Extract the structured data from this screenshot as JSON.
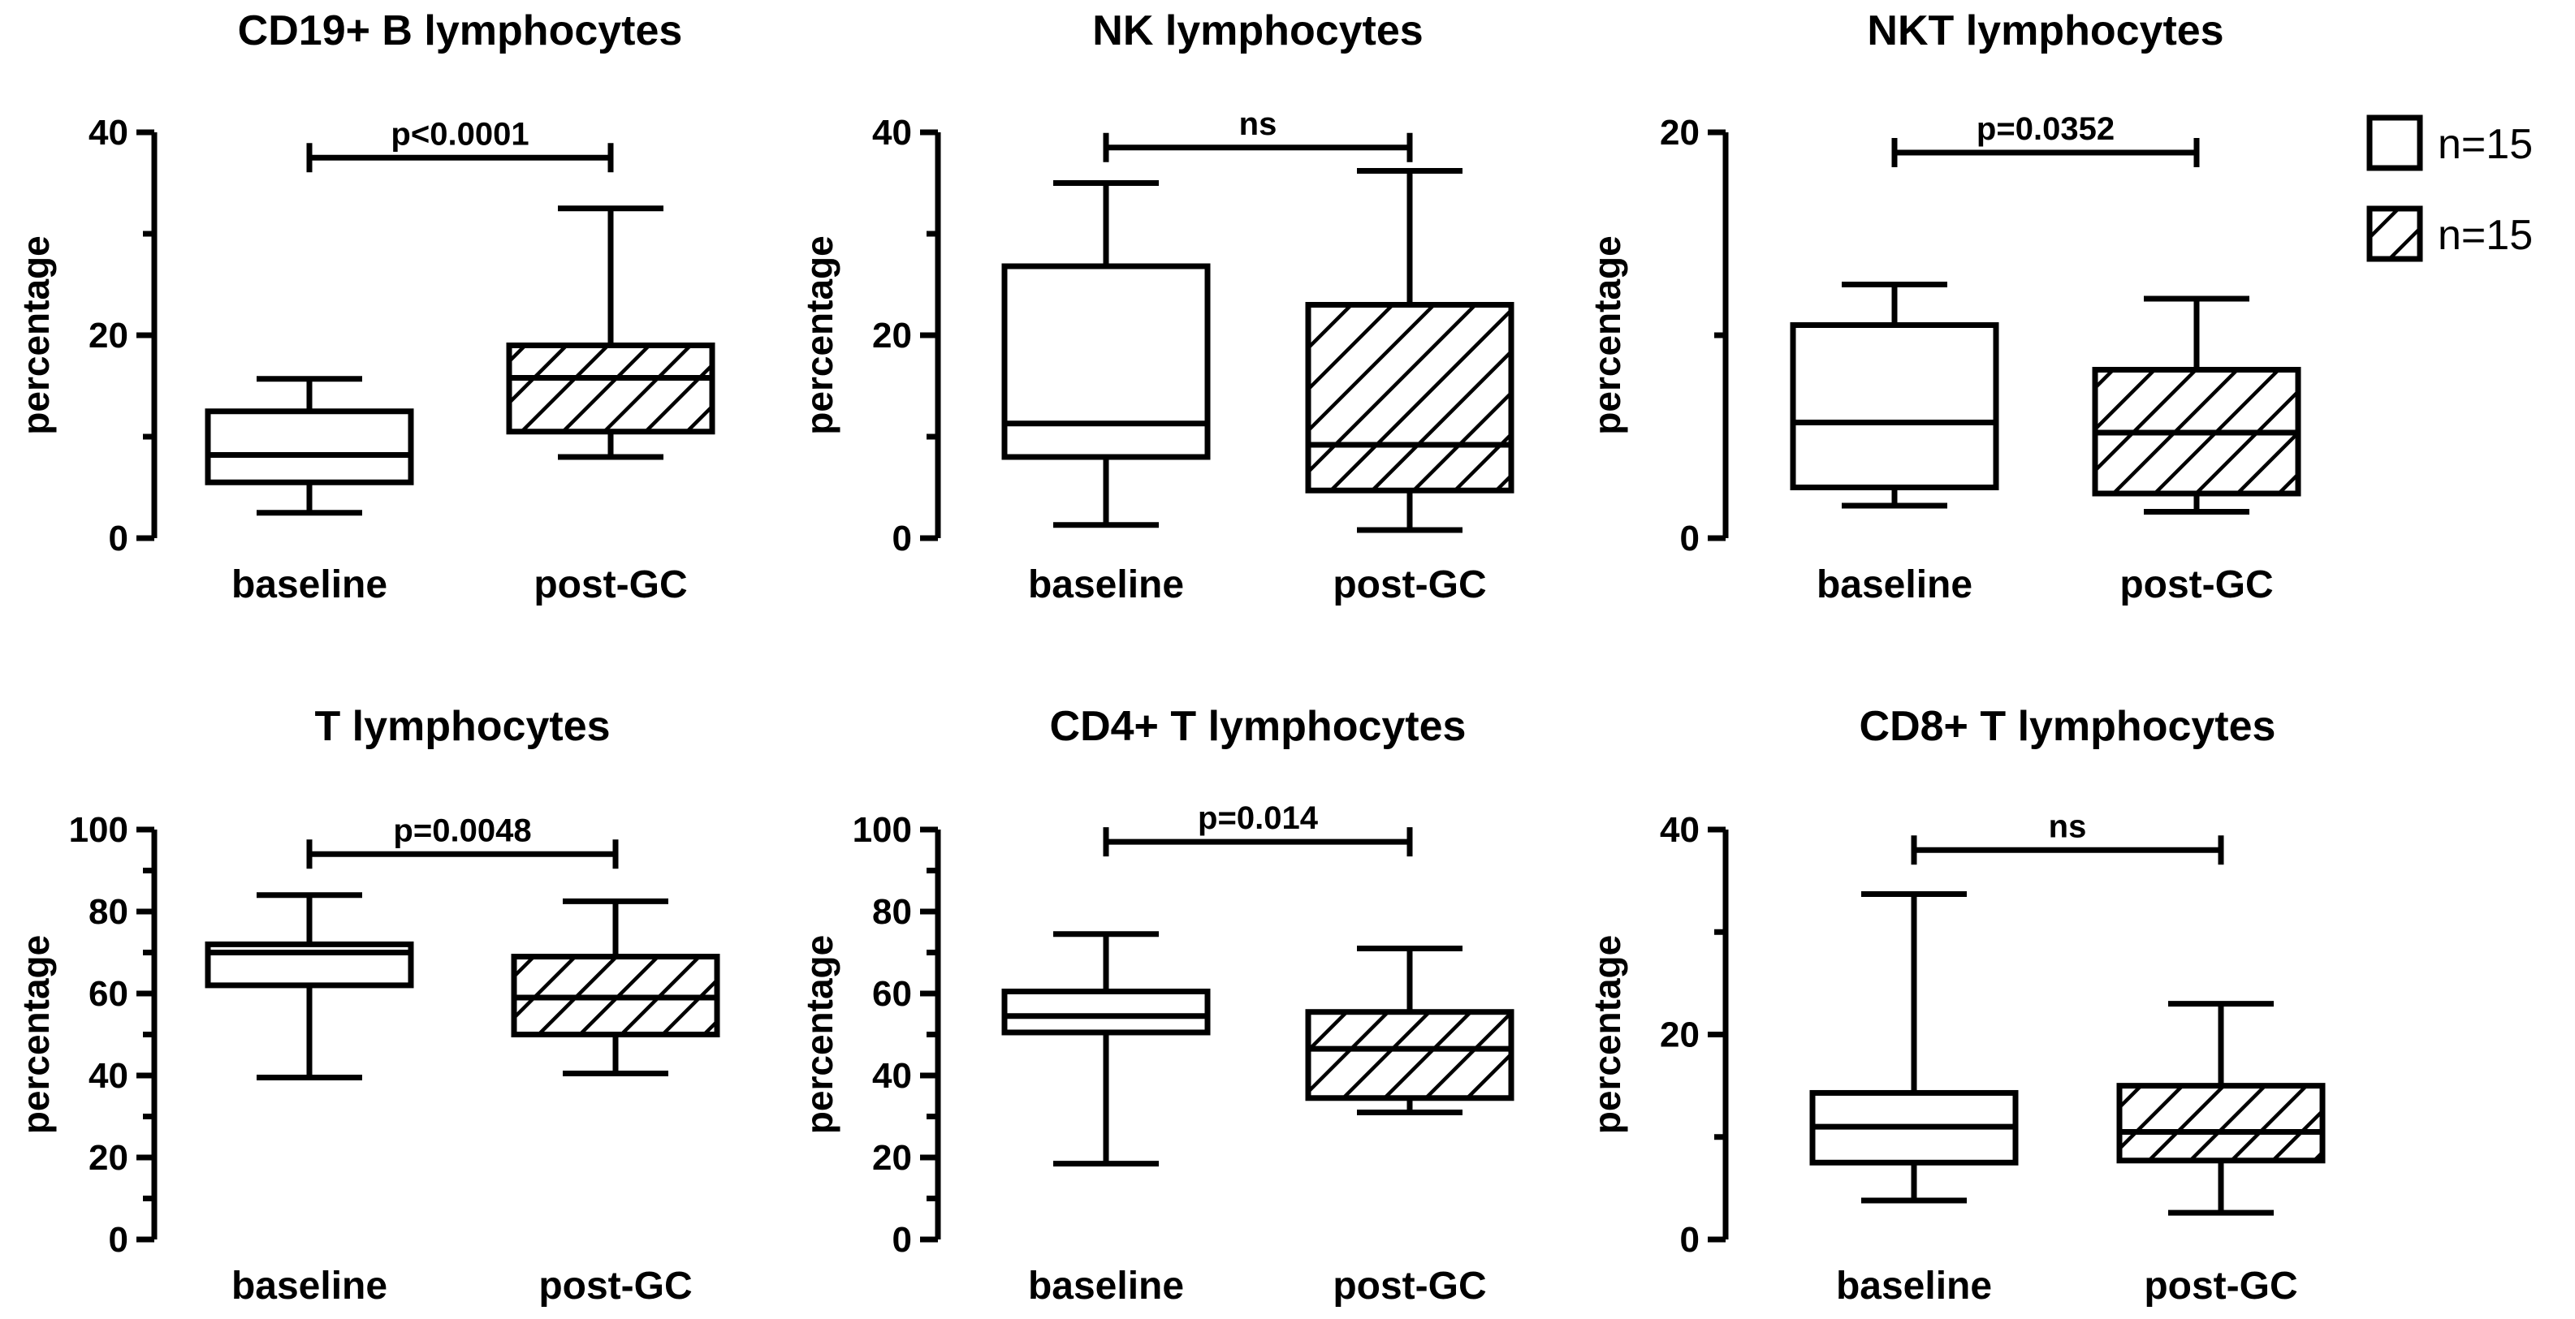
{
  "chart_data": [
    {
      "type": "boxplot",
      "title": "CD19+ B lymphocytes",
      "ylabel": "percentage",
      "ylim": [
        0,
        40
      ],
      "yticks": [
        "0",
        "20",
        "40"
      ],
      "categories": [
        "baseline",
        "post-GC"
      ],
      "boxes": [
        {
          "min": 2.5,
          "q1": 5.5,
          "median": 8.2,
          "q3": 12.5,
          "max": 15.7,
          "hatched": false
        },
        {
          "min": 8.0,
          "q1": 10.5,
          "median": 15.8,
          "q3": 19.0,
          "max": 32.5,
          "hatched": true
        }
      ],
      "annotation": {
        "text": "p<0.0001",
        "y": 37.5
      }
    },
    {
      "type": "boxplot",
      "title": "NK lymphocytes",
      "ylabel": "percentage",
      "ylim": [
        0,
        40
      ],
      "yticks": [
        "0",
        "20",
        "40"
      ],
      "categories": [
        "baseline",
        "post-GC"
      ],
      "boxes": [
        {
          "min": 1.3,
          "q1": 8.0,
          "median": 11.3,
          "q3": 26.8,
          "max": 35.0,
          "hatched": false
        },
        {
          "min": 0.8,
          "q1": 4.7,
          "median": 9.2,
          "q3": 23.0,
          "max": 36.2,
          "hatched": true
        }
      ],
      "annotation": {
        "text": "ns",
        "y": 38.5
      }
    },
    {
      "type": "boxplot",
      "title": "NKT lymphocytes",
      "ylabel": "percentage",
      "ylim": [
        0,
        20
      ],
      "yticks": [
        "0",
        "20"
      ],
      "categories": [
        "baseline",
        "post-GC"
      ],
      "boxes": [
        {
          "min": 1.6,
          "q1": 2.5,
          "median": 5.7,
          "q3": 10.5,
          "max": 12.5,
          "hatched": false
        },
        {
          "min": 1.3,
          "q1": 2.2,
          "median": 5.2,
          "q3": 8.3,
          "max": 11.8,
          "hatched": true
        }
      ],
      "annotation": {
        "text": "p=0.0352",
        "y": 19.0
      }
    },
    {
      "type": "boxplot",
      "title": "T lymphocytes",
      "ylabel": "percentage",
      "ylim": [
        0,
        100
      ],
      "yticks": [
        "0",
        "20",
        "40",
        "60",
        "80",
        "100"
      ],
      "categories": [
        "baseline",
        "post-GC"
      ],
      "boxes": [
        {
          "min": 39.5,
          "q1": 62.0,
          "median": 70.0,
          "q3": 72.0,
          "max": 84.0,
          "hatched": false
        },
        {
          "min": 40.5,
          "q1": 50.0,
          "median": 59.0,
          "q3": 69.0,
          "max": 82.5,
          "hatched": true
        }
      ],
      "annotation": {
        "text": "p=0.0048",
        "y": 94.0
      }
    },
    {
      "type": "boxplot",
      "title": "CD4+ T lymphocytes",
      "ylabel": "percentage",
      "ylim": [
        0,
        100
      ],
      "yticks": [
        "0",
        "20",
        "40",
        "60",
        "80",
        "100"
      ],
      "categories": [
        "baseline",
        "post-GC"
      ],
      "boxes": [
        {
          "min": 18.5,
          "q1": 50.5,
          "median": 54.5,
          "q3": 60.5,
          "max": 74.5,
          "hatched": false
        },
        {
          "min": 31.0,
          "q1": 34.5,
          "median": 46.5,
          "q3": 55.5,
          "max": 71.0,
          "hatched": true
        }
      ],
      "annotation": {
        "text": "p=0.014",
        "y": 97.0
      }
    },
    {
      "type": "boxplot",
      "title": "CD8+ T lymphocytes",
      "ylabel": "percentage",
      "ylim": [
        0,
        40
      ],
      "yticks": [
        "0",
        "20",
        "40"
      ],
      "categories": [
        "baseline",
        "post-GC"
      ],
      "boxes": [
        {
          "min": 3.8,
          "q1": 7.5,
          "median": 11.0,
          "q3": 14.3,
          "max": 33.7,
          "hatched": false
        },
        {
          "min": 2.6,
          "q1": 7.7,
          "median": 10.5,
          "q3": 15.0,
          "max": 23.0,
          "hatched": true
        }
      ],
      "annotation": {
        "text": "ns",
        "y": 38.0
      }
    }
  ],
  "legend": [
    {
      "label": "n=15",
      "hatched": false
    },
    {
      "label": "n=15",
      "hatched": true
    }
  ]
}
